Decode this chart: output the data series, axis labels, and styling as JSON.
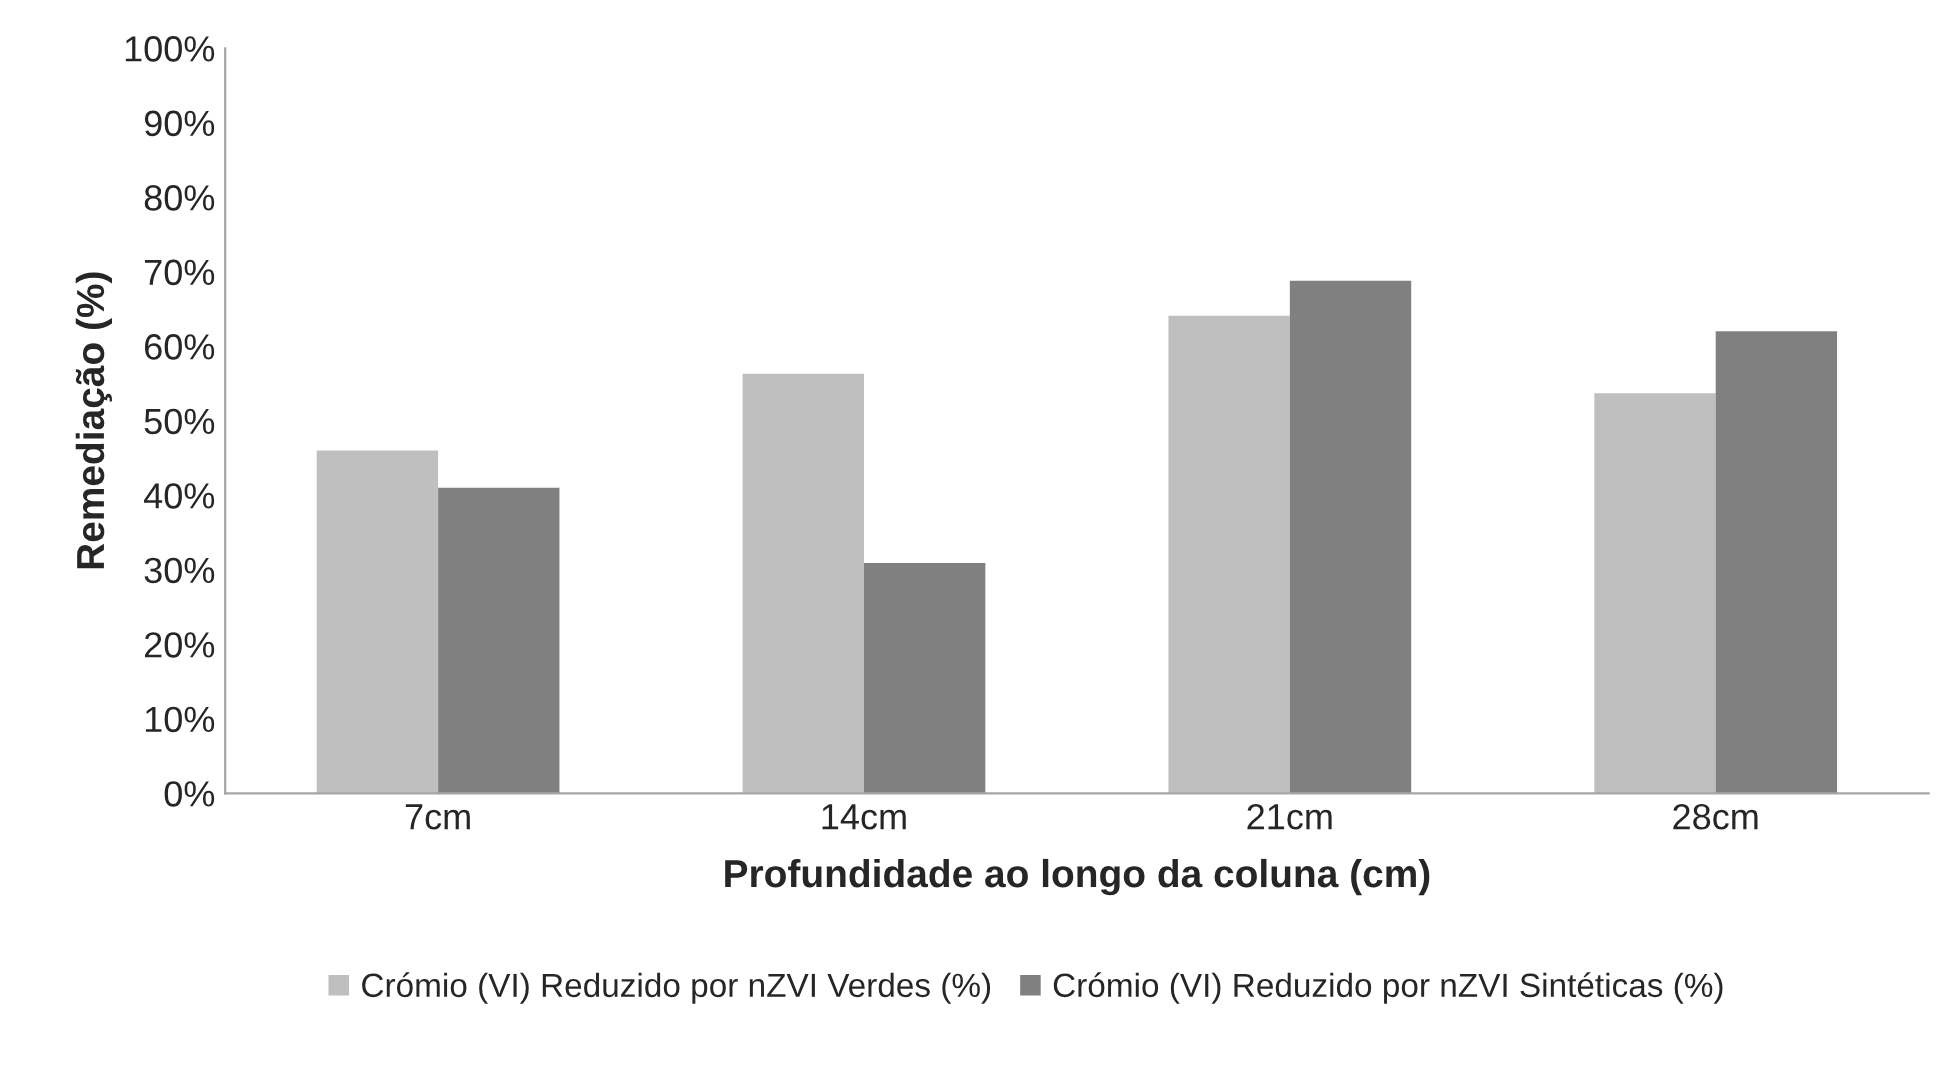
{
  "chart_data": {
    "type": "bar",
    "xlabel": "Profundidade ao longo da coluna (cm)",
    "ylabel": "Remediação (%)",
    "categories": [
      "7cm",
      "14cm",
      "21cm",
      "28cm"
    ],
    "series": [
      {
        "name": "Crómio (VI) Reduzido por nZVI Verdes (%)",
        "color": "#bfbfbf",
        "values": [
          46,
          56.3,
          64.1,
          53.7
        ]
      },
      {
        "name": "Crómio (VI) Reduzido por nZVI Sintéticas (%)",
        "color": "#808080",
        "values": [
          41,
          30.9,
          68.8,
          62
        ]
      }
    ],
    "ylim": [
      0,
      100
    ],
    "yticks": [
      {
        "value": 0,
        "label": "0%"
      },
      {
        "value": 10,
        "label": "10%"
      },
      {
        "value": 20,
        "label": "20%"
      },
      {
        "value": 30,
        "label": "30%"
      },
      {
        "value": 40,
        "label": "40%"
      },
      {
        "value": 50,
        "label": "50%"
      },
      {
        "value": 60,
        "label": "60%"
      },
      {
        "value": 70,
        "label": "70%"
      },
      {
        "value": 80,
        "label": "80%"
      },
      {
        "value": 90,
        "label": "90%"
      },
      {
        "value": 100,
        "label": "100%"
      }
    ],
    "grid": false,
    "legend": "bottom"
  }
}
